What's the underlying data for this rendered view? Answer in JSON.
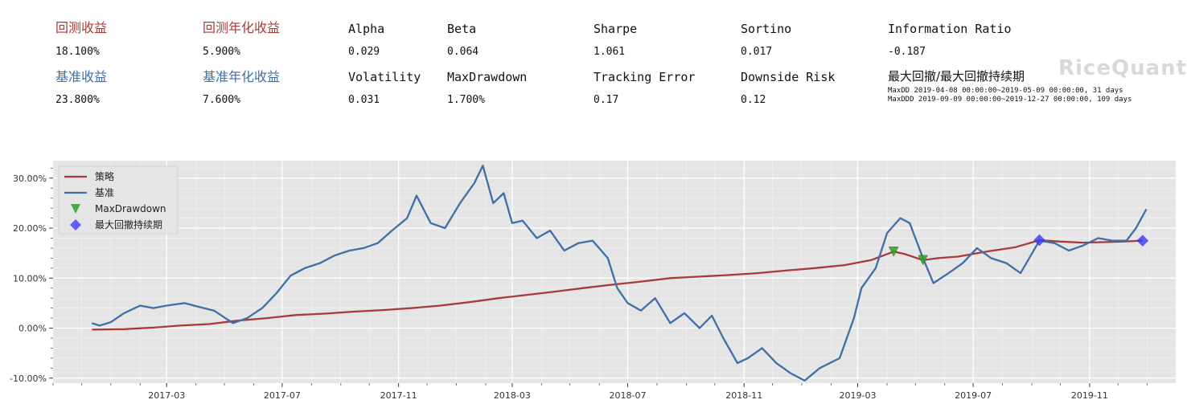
{
  "stats": {
    "row1": [
      {
        "label": "回测收益",
        "value": "18.100%"
      },
      {
        "label": "回测年化收益",
        "value": "5.900%"
      },
      {
        "label": "Alpha",
        "value": "0.029"
      },
      {
        "label": "Beta",
        "value": "0.064"
      },
      {
        "label": "Sharpe",
        "value": "1.061"
      },
      {
        "label": "Sortino",
        "value": "0.017"
      },
      {
        "label": "Information Ratio",
        "value": "-0.187"
      }
    ],
    "row2": [
      {
        "label": "基准收益",
        "value": "23.800%"
      },
      {
        "label": "基准年化收益",
        "value": "7.600%"
      },
      {
        "label": "Volatility",
        "value": "0.031"
      },
      {
        "label": "MaxDrawdown",
        "value": "1.700%"
      },
      {
        "label": "Tracking Error",
        "value": "0.17"
      },
      {
        "label": "Downside Risk",
        "value": "0.12"
      },
      {
        "label": "最大回撤/最大回撤持续期",
        "value": ""
      }
    ],
    "maxdd_line": "MaxDD  2019-04-08 00:00:00~2019-05-09 00:00:00, 31 days",
    "maxddd_line": "MaxDDD 2019-09-09 00:00:00~2019-12-27 00:00:00, 109 days"
  },
  "logo": "RiceQuant",
  "colors": {
    "strategy": "#a93a3a",
    "benchmark": "#3f6ea8",
    "maxdd": "#2ca02c",
    "maxddd": "#3b3bff",
    "bg": "#e5e5e5",
    "grid": "#ffffff",
    "red_label": "#a93a3a",
    "blue_label": "#3f6ea8"
  },
  "chart_data": {
    "type": "line",
    "xlabel": "",
    "ylabel": "",
    "x_ticks": [
      "2017-03",
      "2017-07",
      "2017-11",
      "2018-03",
      "2018-07",
      "2018-11",
      "2019-03",
      "2019-07",
      "2019-11"
    ],
    "y_ticks": [
      "-10.00%",
      "0.00%",
      "10.00%",
      "20.00%",
      "30.00%"
    ],
    "ylim": [
      -11,
      33.5
    ],
    "xlim": [
      "2016-11-01",
      "2020-01-31"
    ],
    "legend_position": "upper-left",
    "grid": true,
    "series": [
      {
        "name": "策略",
        "color": "#a93a3a",
        "points": [
          [
            "2016-12-12",
            -0.3
          ],
          [
            "2017-01-15",
            -0.2
          ],
          [
            "2017-02-15",
            0.1
          ],
          [
            "2017-03-15",
            0.5
          ],
          [
            "2017-04-15",
            0.8
          ],
          [
            "2017-05-15",
            1.5
          ],
          [
            "2017-06-15",
            2.0
          ],
          [
            "2017-07-15",
            2.6
          ],
          [
            "2017-08-15",
            2.9
          ],
          [
            "2017-09-15",
            3.3
          ],
          [
            "2017-10-15",
            3.6
          ],
          [
            "2017-11-15",
            4.0
          ],
          [
            "2017-12-15",
            4.5
          ],
          [
            "2018-01-15",
            5.2
          ],
          [
            "2018-02-15",
            6.0
          ],
          [
            "2018-03-15",
            6.6
          ],
          [
            "2018-04-15",
            7.3
          ],
          [
            "2018-05-15",
            8.0
          ],
          [
            "2018-06-15",
            8.7
          ],
          [
            "2018-07-15",
            9.3
          ],
          [
            "2018-08-15",
            10.0
          ],
          [
            "2018-09-15",
            10.3
          ],
          [
            "2018-10-15",
            10.6
          ],
          [
            "2018-11-15",
            11.0
          ],
          [
            "2018-12-15",
            11.5
          ],
          [
            "2019-01-15",
            12.0
          ],
          [
            "2019-02-15",
            12.6
          ],
          [
            "2019-03-15",
            13.6
          ],
          [
            "2019-04-08",
            15.3
          ],
          [
            "2019-04-20",
            14.8
          ],
          [
            "2019-05-09",
            13.6
          ],
          [
            "2019-05-25",
            14.0
          ],
          [
            "2019-06-15",
            14.3
          ],
          [
            "2019-07-15",
            15.3
          ],
          [
            "2019-08-15",
            16.2
          ],
          [
            "2019-09-09",
            17.6
          ],
          [
            "2019-10-01",
            17.3
          ],
          [
            "2019-10-25",
            17.1
          ],
          [
            "2019-11-15",
            17.2
          ],
          [
            "2019-12-05",
            17.3
          ],
          [
            "2019-12-27",
            17.5
          ]
        ]
      },
      {
        "name": "基准",
        "color": "#3f6ea8",
        "points": [
          [
            "2016-12-12",
            1.0
          ],
          [
            "2016-12-20",
            0.5
          ],
          [
            "2017-01-01",
            1.2
          ],
          [
            "2017-01-15",
            3.0
          ],
          [
            "2017-02-01",
            4.5
          ],
          [
            "2017-02-15",
            4.0
          ],
          [
            "2017-03-01",
            4.5
          ],
          [
            "2017-03-20",
            5.0
          ],
          [
            "2017-04-05",
            4.2
          ],
          [
            "2017-04-20",
            3.5
          ],
          [
            "2017-05-10",
            1.0
          ],
          [
            "2017-05-25",
            2.0
          ],
          [
            "2017-06-10",
            4.0
          ],
          [
            "2017-06-25",
            7.0
          ],
          [
            "2017-07-10",
            10.5
          ],
          [
            "2017-07-25",
            12.0
          ],
          [
            "2017-08-10",
            13.0
          ],
          [
            "2017-08-25",
            14.5
          ],
          [
            "2017-09-10",
            15.5
          ],
          [
            "2017-09-25",
            16.0
          ],
          [
            "2017-10-10",
            17.0
          ],
          [
            "2017-10-25",
            19.5
          ],
          [
            "2017-11-10",
            22.0
          ],
          [
            "2017-11-20",
            26.5
          ],
          [
            "2017-12-05",
            21.0
          ],
          [
            "2017-12-20",
            20.0
          ],
          [
            "2018-01-05",
            25.0
          ],
          [
            "2018-01-20",
            29.0
          ],
          [
            "2018-01-29",
            32.5
          ],
          [
            "2018-02-09",
            25.0
          ],
          [
            "2018-02-20",
            27.0
          ],
          [
            "2018-03-01",
            21.0
          ],
          [
            "2018-03-12",
            21.5
          ],
          [
            "2018-03-27",
            18.0
          ],
          [
            "2018-04-10",
            19.5
          ],
          [
            "2018-04-25",
            15.5
          ],
          [
            "2018-05-10",
            17.0
          ],
          [
            "2018-05-25",
            17.5
          ],
          [
            "2018-06-10",
            14.0
          ],
          [
            "2018-06-20",
            8.0
          ],
          [
            "2018-07-01",
            5.0
          ],
          [
            "2018-07-15",
            3.5
          ],
          [
            "2018-07-30",
            6.0
          ],
          [
            "2018-08-15",
            1.0
          ],
          [
            "2018-08-30",
            3.0
          ],
          [
            "2018-09-15",
            0.0
          ],
          [
            "2018-09-28",
            2.5
          ],
          [
            "2018-10-10",
            -2.0
          ],
          [
            "2018-10-25",
            -7.0
          ],
          [
            "2018-11-05",
            -6.0
          ],
          [
            "2018-11-20",
            -4.0
          ],
          [
            "2018-12-05",
            -7.0
          ],
          [
            "2018-12-20",
            -9.0
          ],
          [
            "2019-01-04",
            -10.5
          ],
          [
            "2019-01-20",
            -8.0
          ],
          [
            "2019-02-10",
            -6.0
          ],
          [
            "2019-02-25",
            2.0
          ],
          [
            "2019-03-05",
            8.0
          ],
          [
            "2019-03-20",
            12.0
          ],
          [
            "2019-04-01",
            19.0
          ],
          [
            "2019-04-15",
            22.0
          ],
          [
            "2019-04-25",
            21.0
          ],
          [
            "2019-05-09",
            14.0
          ],
          [
            "2019-05-20",
            9.0
          ],
          [
            "2019-06-05",
            11.0
          ],
          [
            "2019-06-20",
            13.0
          ],
          [
            "2019-07-05",
            16.0
          ],
          [
            "2019-07-20",
            14.0
          ],
          [
            "2019-08-05",
            13.0
          ],
          [
            "2019-08-20",
            11.0
          ],
          [
            "2019-09-09",
            17.5
          ],
          [
            "2019-09-25",
            17.0
          ],
          [
            "2019-10-10",
            15.5
          ],
          [
            "2019-10-25",
            16.5
          ],
          [
            "2019-11-10",
            18.0
          ],
          [
            "2019-11-25",
            17.5
          ],
          [
            "2019-12-10",
            17.5
          ],
          [
            "2019-12-20",
            20.0
          ],
          [
            "2019-12-31",
            23.8
          ]
        ]
      }
    ],
    "markers": [
      {
        "name": "MaxDrawdown",
        "shape": "triangle-down",
        "color": "#2ca02c",
        "points": [
          [
            "2019-04-08",
            15.3
          ],
          [
            "2019-05-09",
            13.6
          ]
        ]
      },
      {
        "name": "最大回撤持续期",
        "shape": "diamond",
        "color": "#3b3bff",
        "points": [
          [
            "2019-09-09",
            17.6
          ],
          [
            "2019-12-27",
            17.5
          ]
        ]
      }
    ]
  }
}
